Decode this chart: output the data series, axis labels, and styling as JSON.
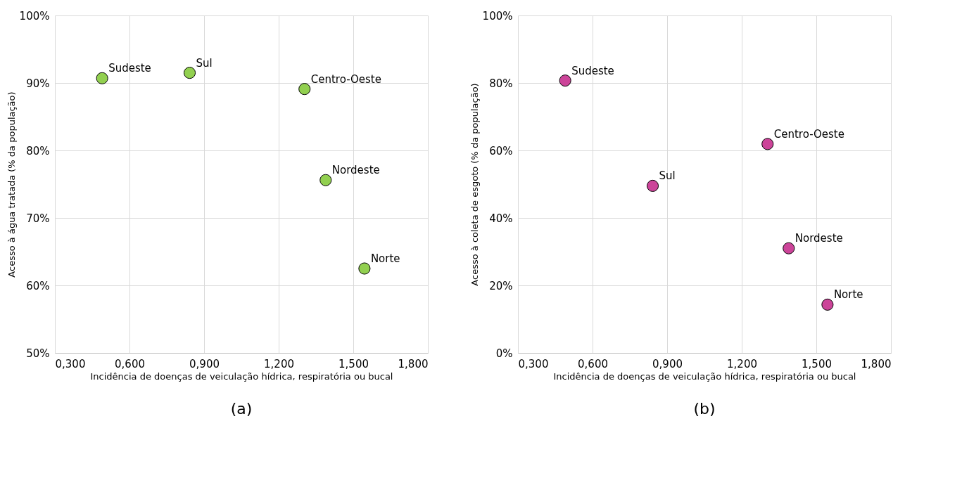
{
  "chart_data": [
    {
      "type": "scatter",
      "xlabel": "Incidência de doenças de veiculação hídrica, respiratória ou bucal",
      "ylabel": "Acesso à água tratada (% da população)",
      "x": [
        0.49,
        0.842,
        1.304,
        1.389,
        1.545
      ],
      "series": [
        {
          "color": "#92d050",
          "values": [
            90.7,
            91.5,
            89.1,
            75.6,
            62.5
          ]
        }
      ],
      "marker": "circle",
      "grid": true,
      "xlim": [
        0.3,
        1.8
      ],
      "xticks": [
        {
          "value": 0.3,
          "label": "0,300"
        },
        {
          "value": 0.6,
          "label": "0,600"
        },
        {
          "value": 0.9,
          "label": "0,900"
        },
        {
          "value": 1.2,
          "label": "1,200"
        },
        {
          "value": 1.5,
          "label": "1,500"
        },
        {
          "value": 1.8,
          "label": "1,800"
        }
      ],
      "ylim": [
        50,
        100
      ],
      "yticks": [
        {
          "value": 50,
          "label": "50%"
        },
        {
          "value": 60,
          "label": "60%"
        },
        {
          "value": 70,
          "label": "70%"
        },
        {
          "value": 80,
          "label": "80%"
        },
        {
          "value": 90,
          "label": "90%"
        },
        {
          "value": 100,
          "label": "100%"
        }
      ],
      "annotations": [
        "(a)",
        {
          "text": "Sudeste",
          "x": 0.49,
          "y": 90.7
        },
        {
          "text": "Sul",
          "x": 0.842,
          "y": 91.5
        },
        {
          "text": "Centro-Oeste",
          "x": 1.304,
          "y": 89.1
        },
        {
          "text": "Nordeste",
          "x": 1.389,
          "y": 75.6
        },
        {
          "text": "Norte",
          "x": 1.545,
          "y": 62.5
        }
      ]
    },
    {
      "type": "scatter",
      "xlabel": "Incidência de doenças de veiculação hídrica, respiratória ou bucal",
      "ylabel": "Acesso à coleta de esgoto (% da população)",
      "x": [
        0.49,
        0.842,
        1.304,
        1.389,
        1.545
      ],
      "series": [
        {
          "color": "#cc4499",
          "values": [
            80.7,
            49.5,
            61.9,
            31.0,
            14.3
          ]
        }
      ],
      "marker": "circle",
      "grid": true,
      "xlim": [
        0.3,
        1.8
      ],
      "xticks": [
        {
          "value": 0.3,
          "label": "0,300"
        },
        {
          "value": 0.6,
          "label": "0,600"
        },
        {
          "value": 0.9,
          "label": "0,900"
        },
        {
          "value": 1.2,
          "label": "1,200"
        },
        {
          "value": 1.5,
          "label": "1,500"
        },
        {
          "value": 1.8,
          "label": "1,800"
        }
      ],
      "ylim": [
        0,
        100
      ],
      "yticks": [
        {
          "value": 0,
          "label": "0%"
        },
        {
          "value": 20,
          "label": "20%"
        },
        {
          "value": 40,
          "label": "40%"
        },
        {
          "value": 60,
          "label": "60%"
        },
        {
          "value": 80,
          "label": "80%"
        },
        {
          "value": 100,
          "label": "100%"
        }
      ],
      "annotations": [
        "(b)",
        {
          "text": "Sudeste",
          "x": 0.49,
          "y": 80.7
        },
        {
          "text": "Sul",
          "x": 0.842,
          "y": 49.5
        },
        {
          "text": "Centro-Oeste",
          "x": 1.304,
          "y": 61.9
        },
        {
          "text": "Nordeste",
          "x": 1.389,
          "y": 31.0
        },
        {
          "text": "Norte",
          "x": 1.545,
          "y": 14.3
        }
      ]
    }
  ]
}
